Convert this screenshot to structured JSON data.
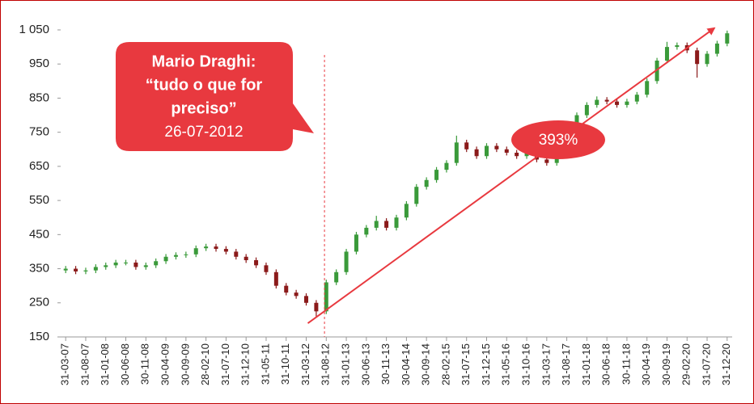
{
  "chart_data": {
    "type": "candlestick",
    "categories": [
      "31-03-07",
      null,
      "31-08-07",
      null,
      "31-01-08",
      null,
      "30-06-08",
      null,
      "30-11-08",
      null,
      "30-04-09",
      null,
      "30-09-09",
      null,
      "28-02-10",
      null,
      "31-07-10",
      null,
      "31-12-10",
      null,
      "31-05-11",
      null,
      "31-10-11",
      null,
      "31-03-12",
      null,
      "31-08-12",
      null,
      "31-01-13",
      null,
      "30-06-13",
      null,
      "30-11-13",
      null,
      "30-04-14",
      null,
      "30-09-14",
      null,
      "28-02-15",
      null,
      "31-07-15",
      null,
      "31-12-15",
      null,
      "31-05-16",
      null,
      "31-10-16",
      null,
      "31-03-17",
      null,
      "31-08-17",
      null,
      "31-01-18",
      null,
      "30-06-18",
      null,
      "30-11-18",
      null,
      "30-04-19",
      null,
      "30-09-19",
      null,
      "29-02-20",
      null,
      "31-07-20",
      null,
      "31-12-20"
    ],
    "open": [
      345,
      350,
      342,
      345,
      355,
      360,
      368,
      368,
      355,
      360,
      372,
      385,
      390,
      392,
      410,
      415,
      408,
      400,
      385,
      375,
      360,
      340,
      300,
      280,
      270,
      250,
      225,
      310,
      340,
      400,
      450,
      470,
      490,
      470,
      500,
      540,
      590,
      610,
      640,
      660,
      720,
      700,
      680,
      710,
      700,
      690,
      680,
      690,
      670,
      660,
      690,
      730,
      800,
      830,
      845,
      840,
      830,
      840,
      860,
      900,
      960,
      1000,
      1005,
      990,
      950,
      980,
      1010
    ],
    "high": [
      358,
      358,
      353,
      363,
      368,
      376,
      376,
      376,
      368,
      380,
      393,
      398,
      400,
      418,
      423,
      423,
      416,
      408,
      393,
      383,
      368,
      348,
      308,
      288,
      278,
      258,
      318,
      348,
      408,
      458,
      478,
      505,
      498,
      508,
      548,
      598,
      618,
      648,
      668,
      740,
      728,
      708,
      718,
      718,
      708,
      698,
      698,
      698,
      678,
      698,
      738,
      808,
      838,
      855,
      853,
      848,
      848,
      868,
      908,
      968,
      1015,
      1013,
      1013,
      998,
      988,
      1018,
      1048
    ],
    "low": [
      337,
      334,
      334,
      337,
      347,
      352,
      360,
      347,
      347,
      352,
      364,
      377,
      382,
      384,
      402,
      400,
      392,
      377,
      367,
      352,
      332,
      292,
      272,
      262,
      242,
      210,
      217,
      302,
      332,
      392,
      442,
      462,
      462,
      462,
      492,
      532,
      582,
      602,
      632,
      652,
      692,
      672,
      672,
      692,
      682,
      672,
      672,
      662,
      652,
      652,
      682,
      722,
      792,
      822,
      832,
      822,
      822,
      832,
      852,
      892,
      952,
      992,
      982,
      910,
      942,
      972,
      1002
    ],
    "close": [
      350,
      342,
      345,
      355,
      360,
      368,
      368,
      355,
      360,
      372,
      385,
      390,
      392,
      410,
      415,
      408,
      400,
      385,
      375,
      360,
      340,
      300,
      280,
      270,
      250,
      225,
      310,
      340,
      400,
      450,
      470,
      490,
      470,
      500,
      540,
      590,
      610,
      640,
      660,
      720,
      700,
      680,
      710,
      700,
      690,
      680,
      690,
      670,
      660,
      690,
      730,
      800,
      830,
      845,
      840,
      830,
      840,
      860,
      900,
      960,
      1000,
      1005,
      990,
      950,
      980,
      1010,
      1040
    ],
    "up_color": "#3a9a3a",
    "down_color": "#8b1a1a",
    "ylim": [
      150,
      1050
    ],
    "yticks": [
      150,
      250,
      350,
      450,
      550,
      650,
      750,
      850,
      950,
      {
        "value": 1050,
        "label": "1 050"
      }
    ],
    "annotations": {
      "callout": [
        "Mario Draghi:",
        "“tudo o que for",
        "preciso”",
        "26-07-2012"
      ],
      "growth": "393%",
      "color": "#e8393f"
    }
  }
}
